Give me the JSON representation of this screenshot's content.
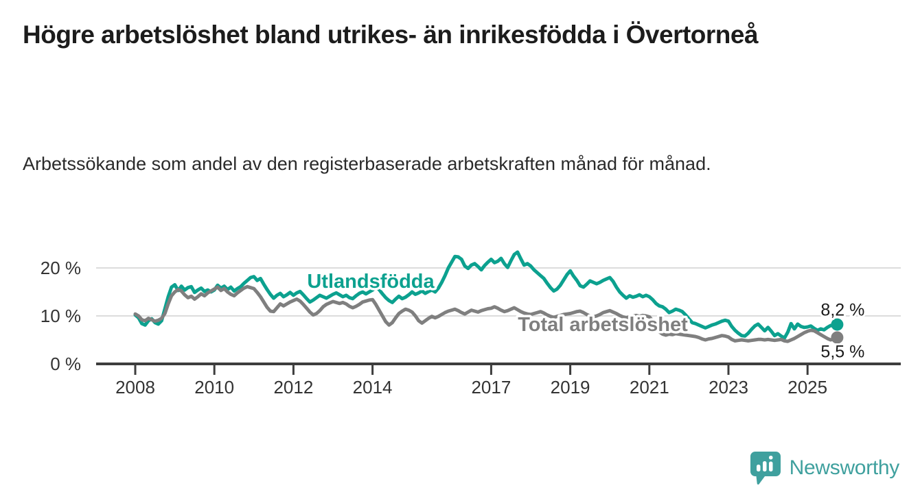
{
  "header": {
    "title": "Högre arbetslöshet bland utrikes- än inrikesfödda i Övertorneå",
    "subtitle": "Arbetssökande som andel av den registerbaserade arbetskraften månad för månad."
  },
  "colors": {
    "foreign_born_line": "#0ca18f",
    "total_line": "#7f7f7f",
    "axis": "#3d3d3d",
    "gridline": "#dcdcdc",
    "tick_label": "#333333",
    "end_label_text": "#1a1a1a",
    "brand_teal": "#3fa09e",
    "title_text": "#1c1c1c"
  },
  "chart_data": {
    "type": "line",
    "title": "Högre arbetslöshet bland utrikes- än inrikesfödda i Övertorneå",
    "subtitle": "Arbetssökande som andel av den registerbaserade arbetskraften månad för månad.",
    "unit": "%",
    "x_start": {
      "year": 2008,
      "month": 1
    },
    "x_step_months": 1,
    "x_ticks": [
      2008,
      2010,
      2012,
      2014,
      2017,
      2019,
      2021,
      2023,
      2025
    ],
    "y_ticks": [
      {
        "value": 0,
        "label": "0 %"
      },
      {
        "value": 10,
        "label": "10 %"
      },
      {
        "value": 20,
        "label": "20 %"
      }
    ],
    "ylim": [
      0,
      25
    ],
    "grid": "horizontal",
    "legend": "inline-labels",
    "series": [
      {
        "name": "Utlandsfödda",
        "color": "#0ca18f",
        "end_label": "8,2 %",
        "end_value": 8.2,
        "values": [
          10.2,
          9.6,
          8.4,
          8.1,
          9.0,
          9.4,
          8.6,
          8.3,
          9.0,
          11.5,
          14.0,
          16.0,
          16.5,
          15.3,
          16.2,
          15.4,
          15.9,
          16.1,
          14.9,
          15.4,
          15.8,
          15.1,
          15.4,
          15.0,
          15.4,
          16.4,
          15.8,
          16.2,
          15.5,
          16.0,
          15.2,
          15.7,
          16.1,
          16.8,
          17.4,
          18.0,
          18.2,
          17.4,
          17.8,
          16.6,
          15.5,
          14.5,
          13.7,
          14.3,
          14.7,
          14.0,
          14.4,
          14.9,
          14.3,
          14.8,
          15.1,
          14.4,
          13.6,
          12.9,
          13.3,
          13.8,
          14.3,
          14.0,
          13.7,
          14.1,
          14.5,
          14.8,
          14.4,
          14.0,
          14.3,
          13.8,
          13.6,
          14.2,
          14.7,
          15.0,
          14.6,
          15.0,
          15.4,
          16.0,
          15.5,
          14.6,
          13.8,
          13.2,
          12.8,
          13.5,
          14.1,
          13.6,
          13.9,
          14.4,
          15.0,
          14.5,
          14.8,
          15.2,
          14.7,
          15.1,
          15.4,
          15.0,
          15.8,
          17.0,
          18.4,
          20.0,
          21.2,
          22.4,
          22.3,
          21.8,
          20.4,
          19.9,
          20.6,
          20.9,
          20.3,
          19.6,
          20.5,
          21.2,
          21.8,
          21.1,
          21.4,
          22.0,
          20.9,
          20.1,
          21.5,
          22.8,
          23.3,
          21.9,
          20.6,
          20.9,
          20.4,
          19.6,
          19.0,
          18.4,
          17.8,
          16.8,
          15.9,
          15.2,
          15.6,
          16.4,
          17.5,
          18.6,
          19.4,
          18.3,
          17.4,
          16.3,
          16.0,
          16.6,
          17.3,
          17.0,
          16.7,
          17.0,
          17.4,
          17.7,
          18.0,
          17.2,
          16.0,
          15.0,
          14.3,
          13.7,
          14.2,
          13.9,
          14.1,
          14.4,
          14.0,
          14.3,
          14.0,
          13.4,
          12.6,
          12.1,
          11.9,
          11.4,
          10.7,
          11.0,
          11.4,
          11.2,
          10.9,
          10.2,
          9.4,
          8.6,
          8.4,
          8.1,
          7.8,
          7.5,
          7.8,
          8.1,
          8.3,
          8.6,
          8.9,
          9.1,
          8.9,
          7.8,
          7.0,
          6.4,
          5.9,
          5.8,
          6.4,
          7.2,
          7.9,
          8.3,
          7.6,
          6.9,
          7.6,
          6.8,
          5.9,
          6.3,
          5.8,
          5.4,
          6.6,
          8.4,
          7.3,
          8.3,
          7.8,
          7.6,
          7.7,
          7.9,
          7.4,
          7.0,
          7.3,
          7.1,
          7.6,
          8.0,
          7.9,
          8.2
        ]
      },
      {
        "name": "Total arbetslöshet",
        "color": "#7f7f7f",
        "end_label": "5,5 %",
        "end_value": 5.5,
        "values": [
          10.4,
          10.0,
          9.2,
          9.0,
          9.5,
          9.2,
          8.9,
          9.1,
          9.5,
          10.5,
          12.5,
          14.2,
          15.0,
          15.5,
          15.2,
          14.4,
          13.8,
          14.1,
          13.5,
          14.0,
          14.6,
          14.2,
          14.8,
          15.2,
          15.6,
          16.0,
          15.3,
          15.7,
          15.0,
          14.5,
          14.2,
          14.8,
          15.3,
          15.8,
          16.1,
          15.9,
          15.7,
          14.9,
          14.0,
          12.9,
          11.8,
          11.0,
          10.9,
          11.7,
          12.5,
          12.1,
          12.5,
          12.9,
          13.2,
          13.5,
          13.1,
          12.4,
          11.6,
          10.8,
          10.2,
          10.5,
          11.1,
          11.9,
          12.4,
          12.7,
          13.0,
          12.8,
          12.6,
          12.8,
          12.5,
          12.0,
          11.7,
          12.0,
          12.4,
          12.9,
          13.1,
          13.3,
          13.4,
          12.4,
          11.2,
          10.0,
          8.8,
          8.1,
          8.6,
          9.6,
          10.5,
          11.0,
          11.4,
          11.2,
          10.8,
          10.0,
          9.0,
          8.5,
          9.0,
          9.5,
          9.9,
          9.6,
          9.9,
          10.3,
          10.7,
          11.0,
          11.2,
          11.4,
          11.1,
          10.7,
          10.4,
          10.8,
          11.2,
          11.0,
          10.8,
          11.1,
          11.3,
          11.5,
          11.6,
          11.9,
          11.6,
          11.2,
          10.9,
          11.1,
          11.4,
          11.7,
          11.3,
          10.9,
          10.6,
          10.4,
          10.3,
          10.5,
          10.7,
          10.9,
          10.6,
          10.2,
          9.9,
          9.7,
          9.9,
          10.1,
          10.3,
          10.4,
          10.5,
          10.7,
          10.9,
          11.0,
          10.7,
          10.3,
          10.0,
          9.8,
          10.0,
          10.3,
          10.7,
          10.9,
          11.1,
          10.8,
          10.5,
          10.1,
          9.8,
          9.6,
          9.8,
          10.0,
          10.1,
          9.9,
          10.1,
          10.0,
          9.8,
          9.0,
          7.8,
          6.7,
          6.2,
          6.0,
          6.2,
          6.1,
          6.3,
          6.2,
          6.1,
          6.0,
          5.9,
          5.8,
          5.7,
          5.5,
          5.2,
          5.0,
          5.2,
          5.3,
          5.5,
          5.7,
          5.9,
          5.8,
          5.6,
          5.1,
          4.8,
          4.9,
          5.0,
          4.9,
          4.8,
          4.9,
          5.0,
          5.1,
          5.1,
          5.0,
          5.1,
          5.0,
          4.9,
          5.0,
          5.1,
          4.8,
          4.7,
          5.0,
          5.3,
          5.7,
          6.1,
          6.5,
          6.8,
          7.0,
          6.9,
          6.5,
          6.1,
          5.7,
          5.3,
          5.0,
          5.2,
          5.5
        ]
      }
    ]
  },
  "footer": {
    "brand_name": "Newsworthy",
    "logo_icon": "speech-bubble-bar-chart-icon"
  }
}
